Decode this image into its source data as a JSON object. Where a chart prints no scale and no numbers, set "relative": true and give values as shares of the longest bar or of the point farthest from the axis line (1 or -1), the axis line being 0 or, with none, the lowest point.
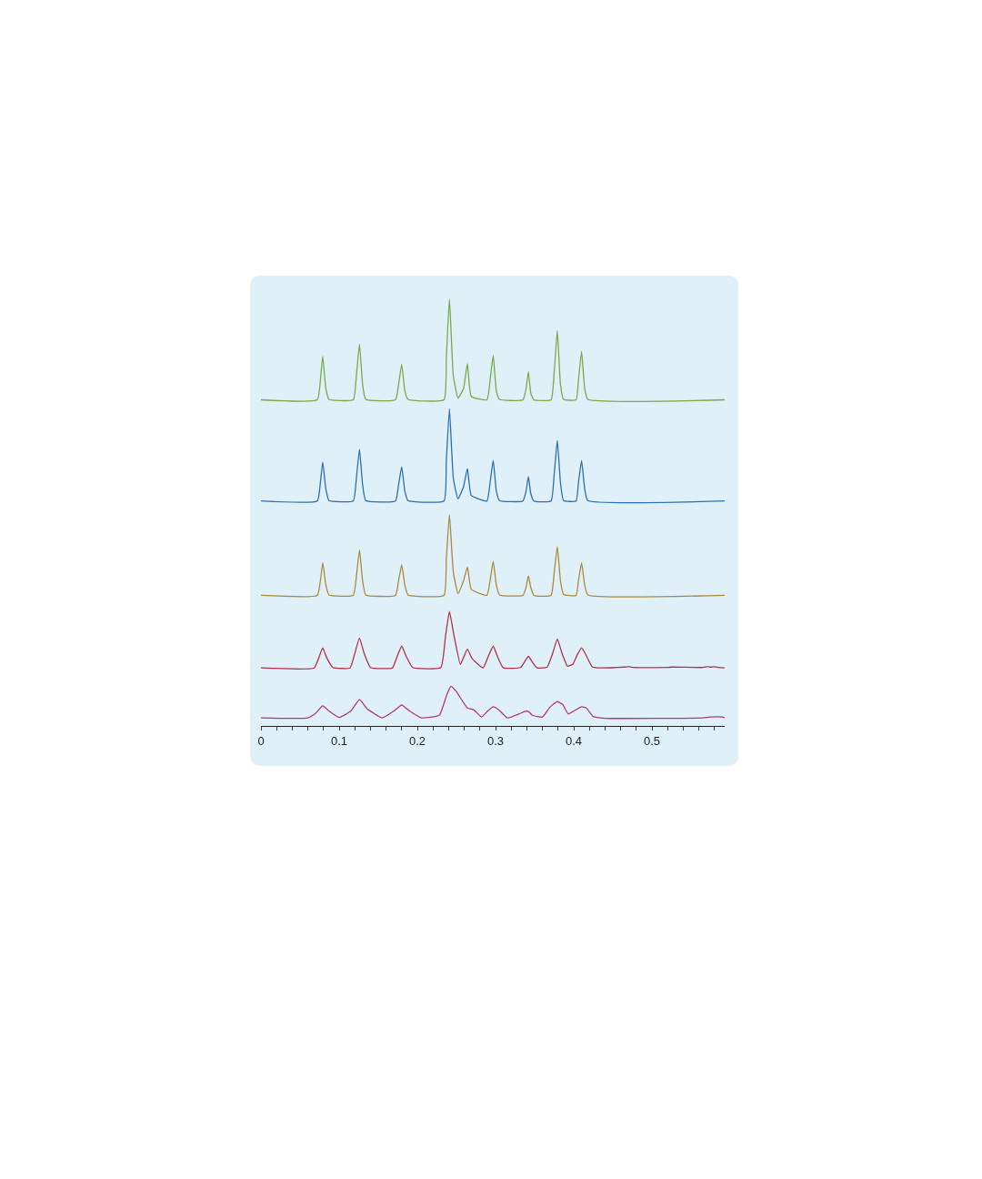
{
  "chart_data": {
    "type": "line",
    "relative": true,
    "xlim": [
      0,
      0.593
    ],
    "xticks": [
      0,
      {
        "value": 0.02,
        "label": null
      },
      {
        "value": 0.04,
        "label": null
      },
      {
        "value": 0.06,
        "label": null
      },
      {
        "value": 0.08,
        "label": null
      },
      0.1,
      {
        "value": 0.12,
        "label": null
      },
      {
        "value": 0.14,
        "label": null
      },
      {
        "value": 0.16,
        "label": null
      },
      {
        "value": 0.18,
        "label": null
      },
      0.2,
      {
        "value": 0.22,
        "label": null
      },
      {
        "value": 0.24,
        "label": null
      },
      {
        "value": 0.26,
        "label": null
      },
      {
        "value": 0.28,
        "label": null
      },
      0.3,
      {
        "value": 0.32,
        "label": null
      },
      {
        "value": 0.34,
        "label": null
      },
      {
        "value": 0.36,
        "label": null
      },
      {
        "value": 0.38,
        "label": null
      },
      0.4,
      {
        "value": 0.42,
        "label": null
      },
      {
        "value": 0.44,
        "label": null
      },
      {
        "value": 0.46,
        "label": null
      },
      {
        "value": 0.48,
        "label": null
      },
      0.5,
      {
        "value": 0.52,
        "label": null
      },
      {
        "value": 0.54,
        "label": null
      },
      {
        "value": 0.56,
        "label": null
      },
      {
        "value": 0.58,
        "label": null
      }
    ],
    "grid": false,
    "marker": "none",
    "line_style": "solid",
    "series": [
      {
        "color": "#7aa84a",
        "x": [
          0,
          0.072,
          0.076,
          0.079,
          0.083,
          0.087,
          0.118,
          0.122,
          0.126,
          0.13,
          0.134,
          0.172,
          0.176,
          0.18,
          0.184,
          0.188,
          0.234,
          0.237,
          0.241,
          0.246,
          0.252,
          0.259,
          0.264,
          0.269,
          0.289,
          0.293,
          0.297,
          0.301,
          0.305,
          0.335,
          0.339,
          0.342,
          0.345,
          0.349,
          0.371,
          0.375,
          0.379,
          0.383,
          0.387,
          0.403,
          0.406,
          0.41,
          0.414,
          0.418,
          0.593
        ],
        "values": [
          0.764,
          0.764,
          0.81,
          0.866,
          0.79,
          0.765,
          0.764,
          0.82,
          0.894,
          0.8,
          0.765,
          0.764,
          0.8,
          0.847,
          0.785,
          0.765,
          0.764,
          0.86,
          1.0,
          0.82,
          0.768,
          0.79,
          0.849,
          0.772,
          0.764,
          0.81,
          0.868,
          0.785,
          0.765,
          0.764,
          0.79,
          0.83,
          0.78,
          0.764,
          0.764,
          0.83,
          0.926,
          0.8,
          0.765,
          0.764,
          0.81,
          0.877,
          0.79,
          0.765,
          0.764
        ]
      },
      {
        "color": "#2a6fae",
        "x": [
          0,
          0.072,
          0.076,
          0.079,
          0.083,
          0.087,
          0.118,
          0.122,
          0.126,
          0.13,
          0.134,
          0.172,
          0.176,
          0.18,
          0.184,
          0.188,
          0.234,
          0.237,
          0.241,
          0.246,
          0.252,
          0.259,
          0.264,
          0.269,
          0.289,
          0.293,
          0.297,
          0.301,
          0.305,
          0.335,
          0.339,
          0.342,
          0.345,
          0.349,
          0.371,
          0.375,
          0.379,
          0.383,
          0.387,
          0.403,
          0.406,
          0.41,
          0.414,
          0.418,
          0.593
        ],
        "values": [
          0.527,
          0.527,
          0.57,
          0.618,
          0.555,
          0.528,
          0.527,
          0.58,
          0.648,
          0.565,
          0.528,
          0.527,
          0.565,
          0.607,
          0.55,
          0.528,
          0.527,
          0.62,
          0.743,
          0.58,
          0.532,
          0.56,
          0.603,
          0.54,
          0.527,
          0.57,
          0.622,
          0.55,
          0.528,
          0.527,
          0.55,
          0.584,
          0.545,
          0.527,
          0.527,
          0.59,
          0.669,
          0.57,
          0.528,
          0.527,
          0.57,
          0.622,
          0.555,
          0.528,
          0.527
        ]
      },
      {
        "color": "#a88a3a",
        "x": [
          0,
          0.072,
          0.076,
          0.079,
          0.083,
          0.087,
          0.118,
          0.122,
          0.126,
          0.13,
          0.134,
          0.172,
          0.176,
          0.18,
          0.184,
          0.188,
          0.234,
          0.237,
          0.241,
          0.246,
          0.252,
          0.259,
          0.264,
          0.269,
          0.289,
          0.293,
          0.297,
          0.301,
          0.305,
          0.335,
          0.339,
          0.342,
          0.345,
          0.349,
          0.371,
          0.375,
          0.379,
          0.383,
          0.387,
          0.403,
          0.406,
          0.41,
          0.414,
          0.418,
          0.593
        ],
        "values": [
          0.306,
          0.306,
          0.34,
          0.382,
          0.33,
          0.307,
          0.306,
          0.35,
          0.412,
          0.34,
          0.307,
          0.306,
          0.34,
          0.378,
          0.33,
          0.307,
          0.306,
          0.39,
          0.495,
          0.36,
          0.31,
          0.34,
          0.372,
          0.32,
          0.306,
          0.34,
          0.386,
          0.33,
          0.307,
          0.306,
          0.325,
          0.352,
          0.325,
          0.306,
          0.306,
          0.36,
          0.42,
          0.34,
          0.308,
          0.306,
          0.34,
          0.382,
          0.33,
          0.307,
          0.306
        ]
      },
      {
        "color": "#b0304a",
        "x": [
          0,
          0.068,
          0.074,
          0.079,
          0.084,
          0.092,
          0.114,
          0.12,
          0.126,
          0.132,
          0.14,
          0.168,
          0.174,
          0.18,
          0.186,
          0.194,
          0.23,
          0.236,
          0.241,
          0.247,
          0.255,
          0.259,
          0.264,
          0.27,
          0.284,
          0.29,
          0.297,
          0.303,
          0.31,
          0.332,
          0.337,
          0.342,
          0.347,
          0.353,
          0.366,
          0.373,
          0.379,
          0.385,
          0.392,
          0.399,
          0.404,
          0.41,
          0.416,
          0.424,
          0.465,
          0.47,
          0.475,
          0.52,
          0.525,
          0.565,
          0.572,
          0.575,
          0.58,
          0.585,
          0.593
        ],
        "values": [
          0.136,
          0.136,
          0.16,
          0.183,
          0.16,
          0.137,
          0.136,
          0.17,
          0.206,
          0.17,
          0.137,
          0.136,
          0.162,
          0.187,
          0.162,
          0.137,
          0.137,
          0.21,
          0.268,
          0.21,
          0.144,
          0.16,
          0.18,
          0.158,
          0.136,
          0.16,
          0.187,
          0.16,
          0.136,
          0.137,
          0.15,
          0.163,
          0.15,
          0.136,
          0.138,
          0.17,
          0.204,
          0.17,
          0.14,
          0.145,
          0.165,
          0.183,
          0.165,
          0.138,
          0.138,
          0.139,
          0.137,
          0.137,
          0.138,
          0.137,
          0.139,
          0.138,
          0.139,
          0.137,
          0.136
        ]
      },
      {
        "color": "#b03a70",
        "x": [
          0,
          0.06,
          0.07,
          0.079,
          0.087,
          0.1,
          0.115,
          0.126,
          0.136,
          0.155,
          0.17,
          0.18,
          0.19,
          0.205,
          0.228,
          0.238,
          0.243,
          0.25,
          0.264,
          0.272,
          0.282,
          0.29,
          0.297,
          0.304,
          0.315,
          0.33,
          0.337,
          0.342,
          0.347,
          0.36,
          0.37,
          0.379,
          0.386,
          0.393,
          0.4,
          0.41,
          0.416,
          0.425,
          0.44,
          0.565,
          0.575,
          0.59,
          0.593
        ],
        "values": [
          0.019,
          0.019,
          0.03,
          0.047,
          0.035,
          0.02,
          0.035,
          0.062,
          0.04,
          0.019,
          0.035,
          0.049,
          0.035,
          0.019,
          0.025,
          0.075,
          0.093,
          0.08,
          0.042,
          0.038,
          0.021,
          0.035,
          0.045,
          0.038,
          0.019,
          0.028,
          0.034,
          0.034,
          0.025,
          0.021,
          0.045,
          0.057,
          0.05,
          0.028,
          0.035,
          0.045,
          0.042,
          0.022,
          0.018,
          0.019,
          0.021,
          0.021,
          0.019
        ]
      }
    ]
  }
}
